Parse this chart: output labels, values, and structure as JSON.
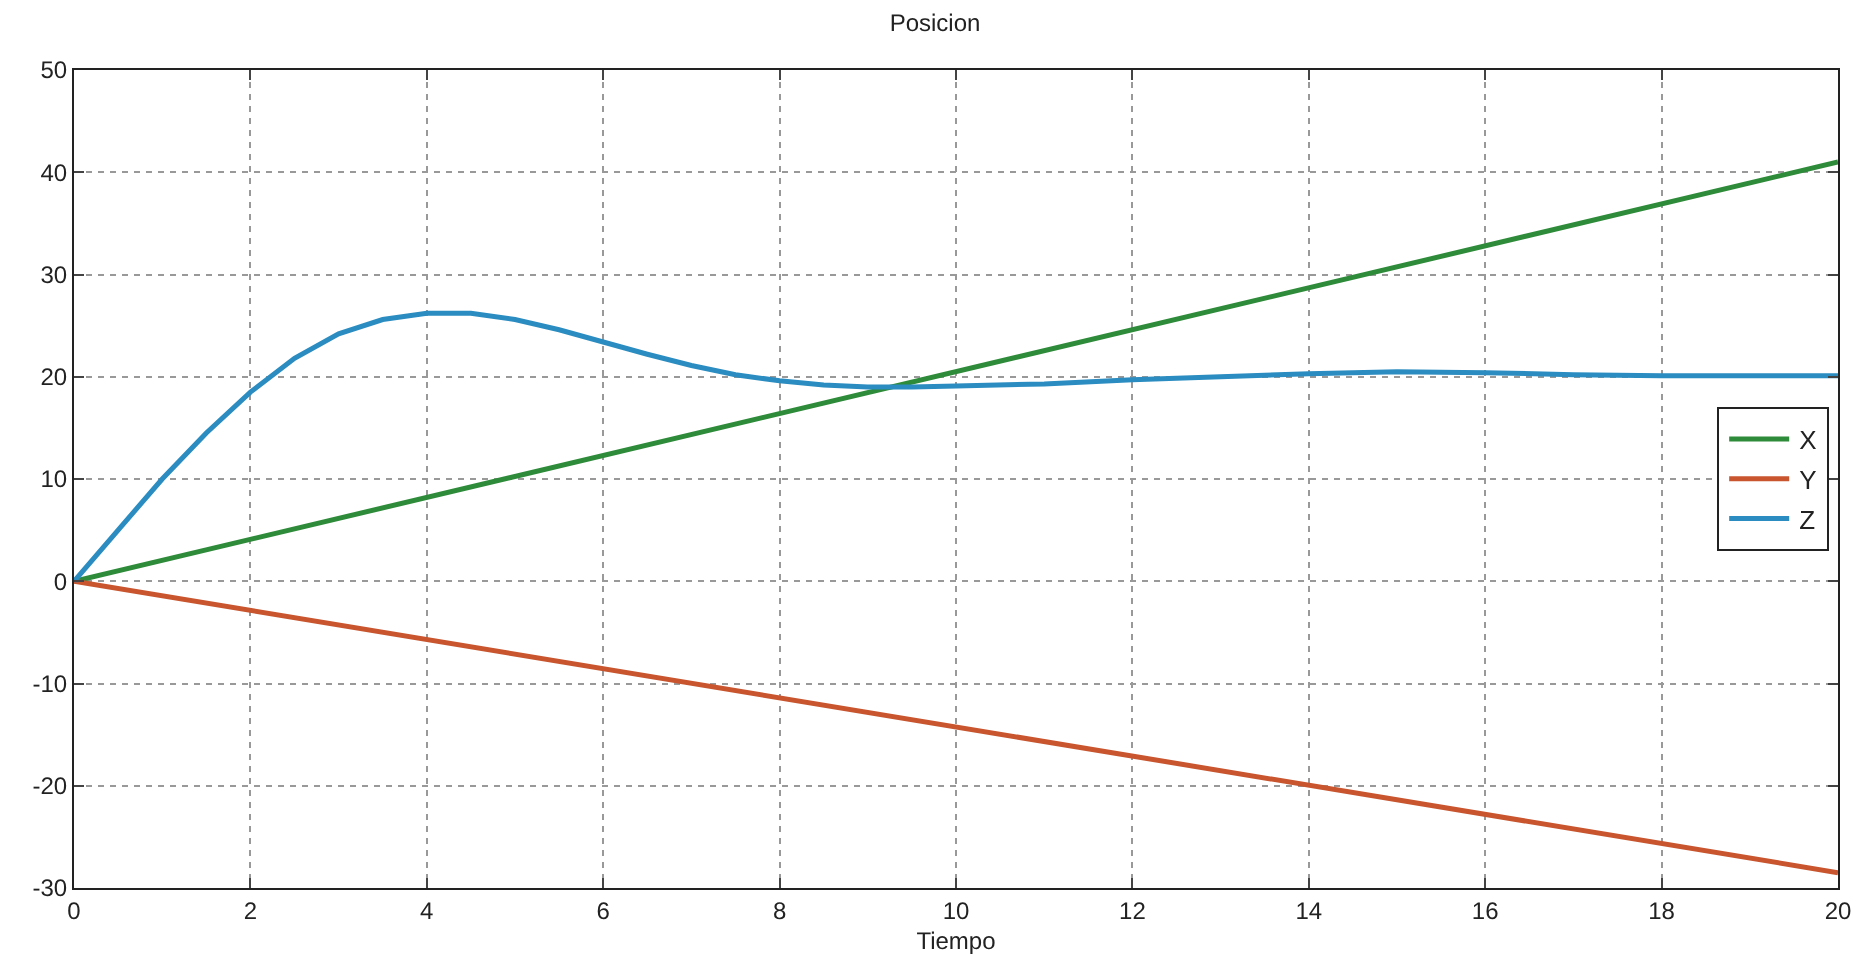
{
  "chart_data": {
    "type": "line",
    "title": "Posicion",
    "xlabel": "Tiempo",
    "xlim": [
      0,
      20
    ],
    "xticks": [
      0,
      2,
      4,
      6,
      8,
      10,
      12,
      14,
      16,
      18,
      20
    ],
    "ylim": [
      -30,
      50
    ],
    "yticks": [
      -30,
      -20,
      -10,
      0,
      10,
      20,
      30,
      40,
      50
    ],
    "grid": true,
    "legend": "right",
    "line_style": "solid",
    "marker": "none",
    "series": [
      {
        "name": "X",
        "color": "#2e8b3a",
        "x": [
          0,
          20
        ],
        "values": [
          0,
          41
        ]
      },
      {
        "name": "Y",
        "color": "#c8552e",
        "x": [
          0,
          20
        ],
        "values": [
          0,
          -28.5
        ]
      },
      {
        "name": "Z",
        "color": "#2a8cc0",
        "x": [
          0,
          0.5,
          1,
          1.5,
          2,
          2.5,
          3,
          3.5,
          4,
          4.5,
          5,
          5.5,
          6,
          6.5,
          7,
          7.5,
          8,
          8.5,
          9,
          9.5,
          10,
          11,
          12,
          13,
          14,
          15,
          16,
          17,
          18,
          19,
          20
        ],
        "values": [
          0,
          5,
          10,
          14.5,
          18.5,
          21.8,
          24.2,
          25.6,
          26.2,
          26.2,
          25.6,
          24.6,
          23.4,
          22.2,
          21.1,
          20.2,
          19.6,
          19.2,
          19.0,
          19.0,
          19.1,
          19.3,
          19.7,
          20.0,
          20.3,
          20.5,
          20.4,
          20.2,
          20.1,
          20.1,
          20.1
        ]
      }
    ]
  }
}
